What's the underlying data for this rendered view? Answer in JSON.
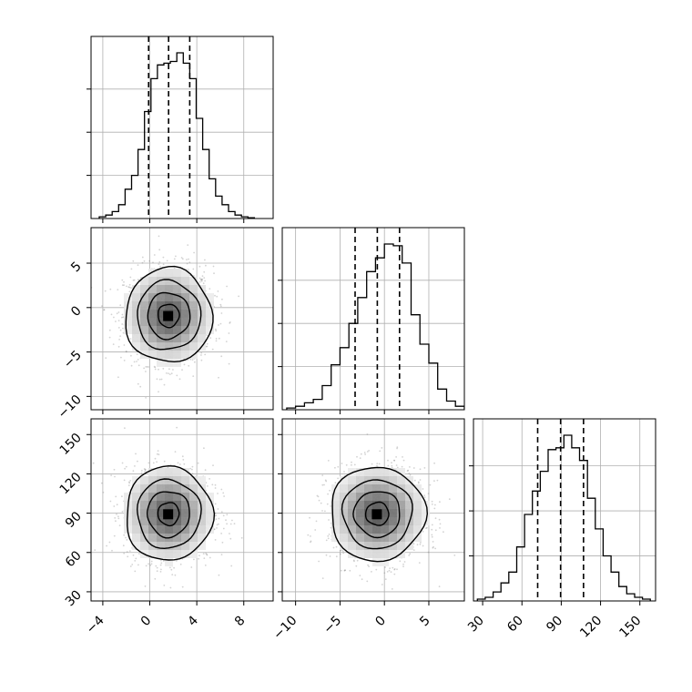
{
  "chart_data": {
    "type": "corner",
    "title": "",
    "grid": true,
    "colors": {
      "line": "#000000",
      "grid": "#b0b0b0",
      "scatter": "#808080",
      "frame": "#000000"
    },
    "parameters": [
      {
        "range": [
          -5.0,
          10.5
        ],
        "ticks": [
          -4,
          0,
          4,
          8
        ],
        "tick_labels": [
          "−4",
          "0",
          "4",
          "8"
        ],
        "quantiles": [
          -0.1,
          1.6,
          3.4
        ]
      },
      {
        "range": [
          -11.5,
          9.0
        ],
        "ticks": [
          -10,
          -5,
          0,
          5
        ],
        "tick_labels": [
          "−10",
          "−5",
          "0",
          "5"
        ],
        "quantiles": [
          -3.3,
          -0.8,
          1.7
        ]
      },
      {
        "range": [
          23,
          162
        ],
        "ticks": [
          30,
          60,
          90,
          120,
          150
        ],
        "tick_labels": [
          "30",
          "60",
          "90",
          "120",
          "150"
        ],
        "quantiles": [
          72,
          89.5,
          107
        ]
      }
    ],
    "histograms": [
      {
        "param": 0,
        "bin_start": -4.3,
        "bin_width": 0.55,
        "counts": [
          1,
          2,
          4,
          8,
          17,
          25,
          40,
          62,
          81,
          89,
          90,
          91,
          96,
          90,
          81,
          58,
          40,
          23,
          13,
          8,
          4,
          2,
          1,
          0.5
        ]
      },
      {
        "param": 1,
        "bin_start": -11.0,
        "bin_width": 1.0,
        "counts": [
          1,
          2,
          4,
          6,
          14,
          26,
          36,
          50,
          65,
          80,
          88,
          96,
          95,
          85,
          55,
          38,
          27,
          12,
          5,
          2
        ]
      },
      {
        "param": 2,
        "bin_start": 26,
        "bin_width": 6.0,
        "counts": [
          1,
          2,
          5,
          10,
          16,
          30,
          48,
          61,
          72,
          84,
          85,
          92,
          85,
          78,
          57,
          40,
          25,
          16,
          8,
          4,
          2,
          1
        ]
      }
    ],
    "contours_2d": [
      {
        "x_param": 0,
        "y_param": 1,
        "center": [
          1.6,
          -0.9
        ],
        "sigma": [
          1.8,
          2.6
        ]
      },
      {
        "x_param": 0,
        "y_param": 2,
        "center": [
          1.6,
          89.5
        ],
        "sigma": [
          1.8,
          17.5
        ]
      },
      {
        "x_param": 1,
        "y_param": 2,
        "center": [
          -0.8,
          89.5
        ],
        "sigma": [
          2.6,
          17.5
        ]
      }
    ]
  }
}
